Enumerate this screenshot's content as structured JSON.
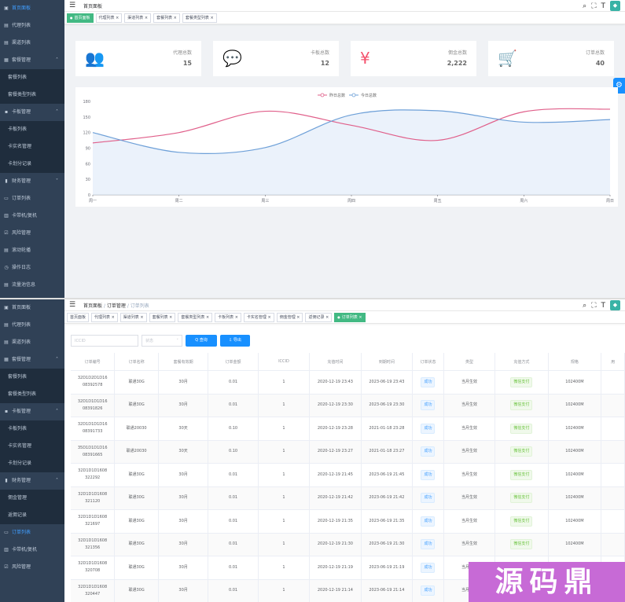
{
  "screen1": {
    "sidebar": [
      {
        "icon": "dashboard-icon",
        "glyph": "▣",
        "label": "首页面板",
        "active": true
      },
      {
        "icon": "agent-icon",
        "glyph": "▤",
        "label": "代理列表"
      },
      {
        "icon": "channel-icon",
        "glyph": "▤",
        "label": "渠道列表"
      },
      {
        "icon": "package-icon",
        "glyph": "▦",
        "label": "套餐管理",
        "group": true,
        "arrow": "˄"
      },
      {
        "label": "套餐列表",
        "sub": true
      },
      {
        "label": "套餐类型列表",
        "sub": true
      },
      {
        "icon": "card-icon",
        "glyph": "▪",
        "label": "卡板管理",
        "group": true,
        "arrow": "˄"
      },
      {
        "label": "卡板列表",
        "sub": true
      },
      {
        "label": "卡实名管理",
        "sub": true
      },
      {
        "label": "卡划分记录",
        "sub": true
      },
      {
        "icon": "finance-icon",
        "glyph": "▮",
        "label": "财务管理",
        "group": true,
        "arrow": "˅"
      },
      {
        "icon": "order-icon",
        "glyph": "▭",
        "label": "订单列表"
      },
      {
        "icon": "device-icon",
        "glyph": "▥",
        "label": "卡带机/复机"
      },
      {
        "icon": "risk-icon",
        "glyph": "☑",
        "label": "风险管理"
      },
      {
        "icon": "slider-icon",
        "glyph": "▤",
        "label": "滚动轮播"
      },
      {
        "icon": "log-icon",
        "glyph": "◷",
        "label": "操作日志"
      },
      {
        "icon": "traffic-icon",
        "glyph": "▤",
        "label": "流量池信息"
      }
    ],
    "breadcrumb": "首页面板",
    "tags": [
      {
        "label": "首页面板",
        "active": true
      },
      {
        "label": "代理列表 ×"
      },
      {
        "label": "渠道列表 ×"
      },
      {
        "label": "套餐列表 ×"
      },
      {
        "label": "套餐类型列表 ×"
      }
    ],
    "cards": [
      {
        "label": "代理总数",
        "value": "15",
        "icon": "user-group-icon",
        "glyph": "👥",
        "color": "#40c9c6"
      },
      {
        "label": "卡板总数",
        "value": "12",
        "icon": "message-icon",
        "glyph": "💬",
        "color": "#36a3f7"
      },
      {
        "label": "佣金总数",
        "value": "2,222",
        "icon": "yen-icon",
        "glyph": "¥",
        "color": "#f4516c"
      },
      {
        "label": "订单总数",
        "value": "40",
        "icon": "cart-icon",
        "glyph": "🛒",
        "color": "#34bfa3"
      }
    ]
  },
  "chart_data": {
    "type": "line",
    "categories": [
      "周一",
      "周二",
      "周三",
      "周四",
      "周五",
      "周六",
      "周日"
    ],
    "series": [
      {
        "name": "昨日总数",
        "values": [
          100,
          120,
          161,
          134,
          105,
          160,
          165
        ],
        "color": "#e05f8a"
      },
      {
        "name": "今日总数",
        "values": [
          120,
          82,
          91,
          154,
          162,
          140,
          145
        ],
        "color": "#6ea0d8"
      }
    ],
    "ylim": [
      0,
      180
    ],
    "yticks": [
      0,
      30,
      60,
      90,
      120,
      150,
      180
    ],
    "legend": "top-center",
    "grid": false
  },
  "screen2": {
    "sidebar": [
      {
        "icon": "dashboard-icon",
        "glyph": "▣",
        "label": "首页面板"
      },
      {
        "icon": "agent-icon",
        "glyph": "▤",
        "label": "代理列表"
      },
      {
        "icon": "channel-icon",
        "glyph": "▤",
        "label": "渠道列表"
      },
      {
        "icon": "package-icon",
        "glyph": "▦",
        "label": "套餐管理",
        "group": true,
        "arrow": "˄"
      },
      {
        "label": "套餐列表",
        "sub": true
      },
      {
        "label": "套餐类型列表",
        "sub": true
      },
      {
        "icon": "card-icon",
        "glyph": "▪",
        "label": "卡板管理",
        "group": true,
        "arrow": "˄"
      },
      {
        "label": "卡板列表",
        "sub": true
      },
      {
        "label": "卡实名管理",
        "sub": true
      },
      {
        "label": "卡划分记录",
        "sub": true
      },
      {
        "icon": "finance-icon",
        "glyph": "▮",
        "label": "财务管理",
        "group": true,
        "arrow": "˄"
      },
      {
        "label": "佣金管理",
        "sub": true
      },
      {
        "label": "返佣记录",
        "sub": true
      },
      {
        "icon": "order-icon",
        "glyph": "▭",
        "label": "订单列表",
        "active": true
      },
      {
        "icon": "device-icon",
        "glyph": "▥",
        "label": "卡带机/复机"
      },
      {
        "icon": "risk-icon",
        "glyph": "☑",
        "label": "风险管理"
      }
    ],
    "breadcrumb": [
      "首页面板",
      "订单管理",
      "订单列表"
    ],
    "tags": [
      {
        "label": "首页面板"
      },
      {
        "label": "代理列表 ×"
      },
      {
        "label": "渠道列表 ×"
      },
      {
        "label": "套餐列表 ×"
      },
      {
        "label": "套餐类型列表 ×"
      },
      {
        "label": "卡板列表 ×"
      },
      {
        "label": "卡实名管理 ×"
      },
      {
        "label": "佣金管理 ×"
      },
      {
        "label": "返佣记录 ×"
      },
      {
        "label": "订单列表 ×",
        "active": true
      }
    ],
    "filters": {
      "iccid_placeholder": "ICCID",
      "status_placeholder": "状态",
      "query_label": "Q 查询",
      "export_label": "⇩ 导出"
    },
    "columns": [
      "订单编号",
      "订单名称",
      "套餐有效期",
      "订单金额",
      "ICCID",
      "充值时间",
      "到期时间",
      "订单状态",
      "类型",
      "充值方式",
      "规格",
      "用"
    ],
    "rows": [
      [
        "32D1D2D1D16\n08392578",
        "联通30G",
        "30月",
        "0.01",
        "1",
        "2020-12-19 23:43",
        "2023-06-19 23:43",
        "成功",
        "当月生效",
        "微信支付",
        "102400M",
        ""
      ],
      [
        "32D1D1D1D16\n08391826",
        "联通30G",
        "30月",
        "0.01",
        "1",
        "2020-12-19 23:30",
        "2023-06-19 23:30",
        "成功",
        "当月生效",
        "微信支付",
        "102400M",
        ""
      ],
      [
        "32D1D1D1D16\n08391733",
        "联通20030",
        "30天",
        "0.10",
        "1",
        "2020-12-19 23:28",
        "2021-01-18 23:28",
        "成功",
        "当月生效",
        "微信支付",
        "102400M",
        ""
      ],
      [
        "35D1D1D1D16\n08391665",
        "联通20030",
        "30天",
        "0.10",
        "1",
        "2020-12-19 23:27",
        "2021-01-18 23:27",
        "成功",
        "当月生效",
        "微信支付",
        "102400M",
        ""
      ],
      [
        "32D1D1D1608\n322292",
        "联通30G",
        "30月",
        "0.01",
        "1",
        "2020-12-19 21:45",
        "2023-06-19 21:45",
        "成功",
        "当月生效",
        "微信支付",
        "102400M",
        ""
      ],
      [
        "32D1D1D1608\n321120",
        "联通30G",
        "30月",
        "0.01",
        "1",
        "2020-12-19 21:42",
        "2023-06-19 21:42",
        "成功",
        "当月生效",
        "微信支付",
        "102400M",
        ""
      ],
      [
        "32D1D1D1608\n321697",
        "联通30G",
        "30月",
        "0.01",
        "1",
        "2020-12-19 21:35",
        "2023-06-19 21:35",
        "成功",
        "当月生效",
        "微信支付",
        "102400M",
        ""
      ],
      [
        "32D1D1D1608\n321356",
        "联通30G",
        "30月",
        "0.01",
        "1",
        "2020-12-19 21:30",
        "2023-06-19 21:30",
        "成功",
        "当月生效",
        "微信支付",
        "102400M",
        ""
      ],
      [
        "32D1D1D1608\n320708",
        "联通30G",
        "30月",
        "0.01",
        "1",
        "2020-12-19 21:19",
        "2023-06-19 21:19",
        "成功",
        "当月生效",
        "微信支付",
        "102400M",
        ""
      ],
      [
        "32D1D1D1608\n320447",
        "联通30G",
        "30月",
        "0.01",
        "1",
        "2020-12-19 21:14",
        "2023-06-19 21:14",
        "成功",
        "当月生效",
        "微信支付",
        "102400M",
        ""
      ]
    ]
  },
  "watermark": "源码鼎"
}
